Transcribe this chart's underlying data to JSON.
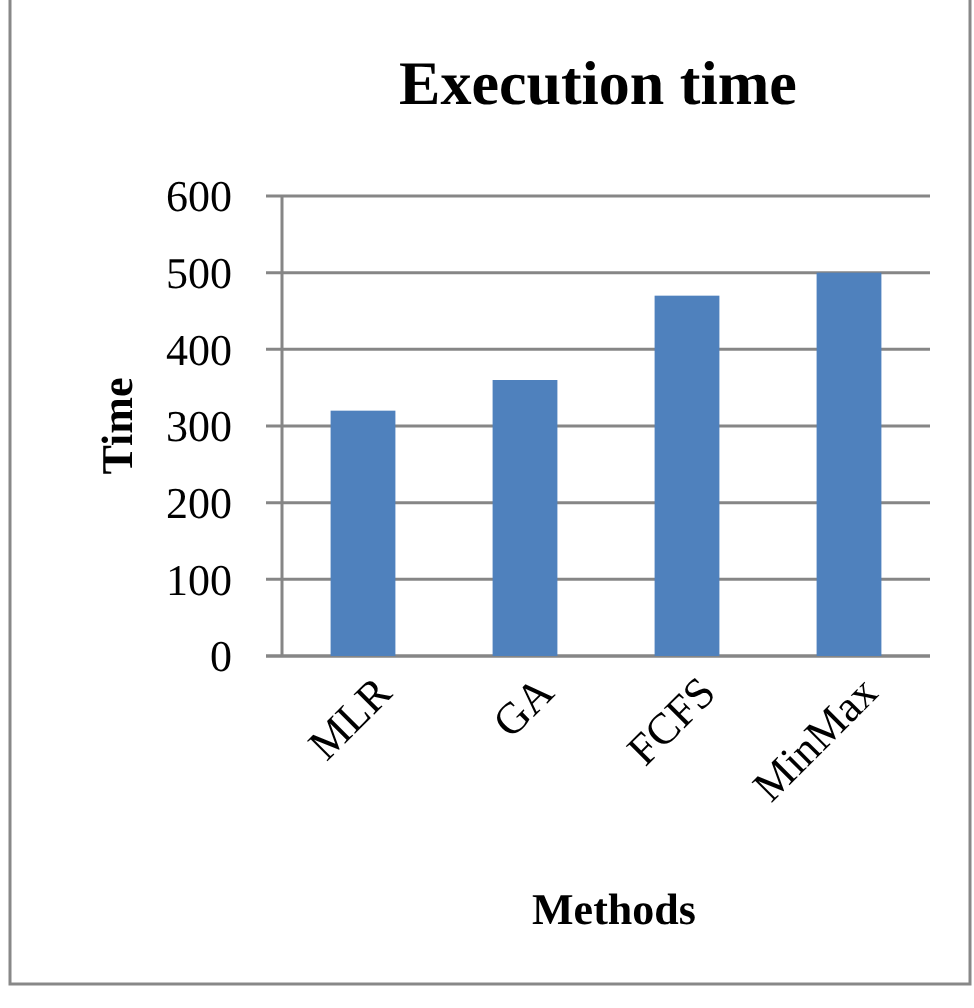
{
  "chart_data": {
    "type": "bar",
    "title": "Execution time",
    "xlabel": "Methods",
    "ylabel": "Time",
    "categories": [
      "MLR",
      "GA",
      "FCFS",
      "MinMax"
    ],
    "values": [
      320,
      360,
      470,
      500
    ],
    "color": "#4f81bd",
    "ylim": [
      0,
      600
    ],
    "yticks": [
      0,
      100,
      200,
      300,
      400,
      500,
      600
    ],
    "grid": "y"
  }
}
